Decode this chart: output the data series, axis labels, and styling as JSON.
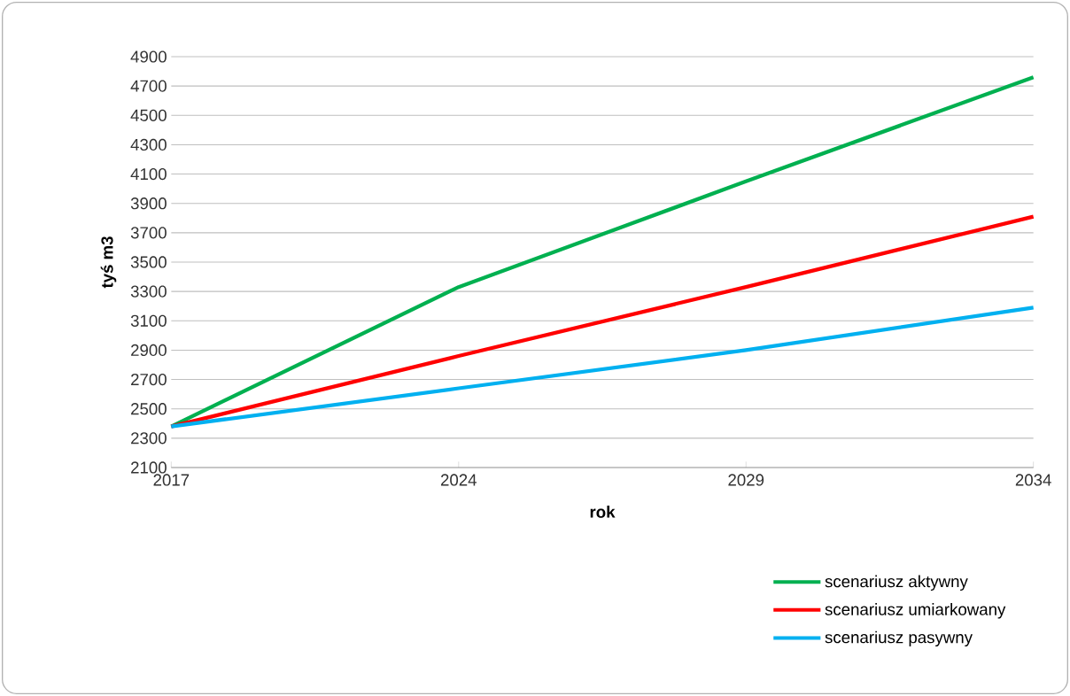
{
  "chart_data": {
    "type": "line",
    "xlabel": "rok",
    "ylabel": "tyś m3",
    "categories": [
      "2017",
      "2024",
      "2029",
      "2034"
    ],
    "series": [
      {
        "name": "scenariusz aktywny",
        "color": "#00b050",
        "values": [
          2380,
          3330,
          4050,
          4760
        ]
      },
      {
        "name": "scenariusz umiarkowany",
        "color": "#ff0000",
        "values": [
          2380,
          2860,
          3330,
          3810
        ]
      },
      {
        "name": "scenariusz pasywny",
        "color": "#00b0f0",
        "values": [
          2380,
          2640,
          2900,
          3190
        ]
      }
    ],
    "ylim": [
      2100,
      4900
    ],
    "yticks": [
      2100,
      2300,
      2500,
      2700,
      2900,
      3100,
      3300,
      3500,
      3700,
      3900,
      4100,
      4300,
      4500,
      4700,
      4900
    ],
    "grid": "y",
    "legend": "bottom right",
    "marker": "none",
    "line_style": "solid"
  }
}
